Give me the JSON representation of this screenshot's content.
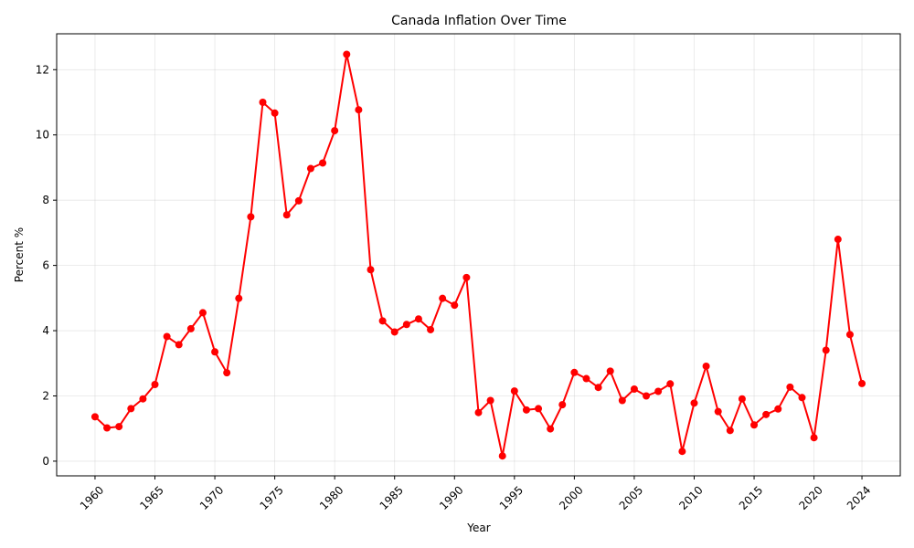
{
  "chart_data": {
    "type": "line",
    "title": "Canada Inflation Over Time",
    "xlabel": "Year",
    "ylabel": "Percent %",
    "xlim": [
      1956.8,
      2027.2
    ],
    "ylim": [
      -0.45,
      13.1
    ],
    "x_ticks": [
      1960,
      1965,
      1970,
      1975,
      1980,
      1985,
      1990,
      1995,
      2000,
      2005,
      2010,
      2015,
      2020,
      2024
    ],
    "y_ticks": [
      0,
      2,
      4,
      6,
      8,
      10,
      12
    ],
    "grid": true,
    "color": "#ff0000",
    "marker": "circle",
    "series": [
      {
        "x": [
          1960,
          1961,
          1962,
          1963,
          1964,
          1965,
          1966,
          1967,
          1968,
          1969,
          1970,
          1971,
          1972,
          1973,
          1974,
          1975,
          1976,
          1977,
          1978,
          1979,
          1980,
          1981,
          1982,
          1983,
          1984,
          1985,
          1986,
          1987,
          1988,
          1989,
          1990,
          1991,
          1992,
          1993,
          1994,
          1995,
          1996,
          1997,
          1998,
          1999,
          2000,
          2001,
          2002,
          2003,
          2004,
          2005,
          2006,
          2007,
          2008,
          2009,
          2010,
          2011,
          2012,
          2013,
          2014,
          2015,
          2016,
          2017,
          2018,
          2019,
          2020,
          2021,
          2022,
          2023,
          2024
        ],
        "values": [
          1.36,
          1.02,
          1.06,
          1.61,
          1.91,
          2.35,
          3.82,
          3.57,
          4.06,
          4.55,
          3.35,
          2.71,
          4.99,
          7.49,
          11.0,
          10.67,
          7.55,
          7.98,
          8.97,
          9.14,
          10.13,
          12.47,
          10.77,
          5.87,
          4.3,
          3.96,
          4.19,
          4.36,
          4.03,
          4.99,
          4.78,
          5.63,
          1.49,
          1.86,
          0.16,
          2.15,
          1.57,
          1.61,
          0.99,
          1.73,
          2.72,
          2.53,
          2.26,
          2.76,
          1.86,
          2.21,
          2.0,
          2.14,
          2.37,
          0.3,
          1.78,
          2.91,
          1.52,
          0.94,
          1.91,
          1.11,
          1.43,
          1.6,
          2.27,
          1.95,
          0.72,
          3.4,
          6.8,
          3.88,
          2.38
        ]
      }
    ]
  }
}
